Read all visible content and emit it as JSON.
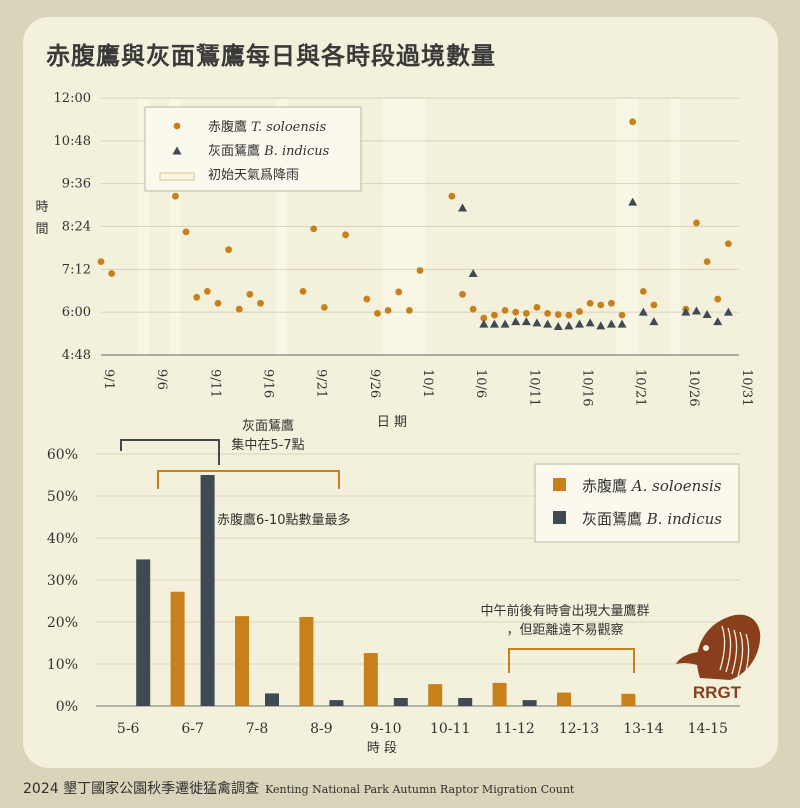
{
  "title": "赤腹鷹與灰面鵟鷹每日與各時段過境數量",
  "footer": {
    "zh": "2024 墾丁國家公園秋季遷徙猛禽調查",
    "en": "Kenting National Park Autumn Raptor Migration Count"
  },
  "logo": {
    "text": "RRGT",
    "icon": "eagle-head-icon",
    "color": "#8a3f1c"
  },
  "colors": {
    "chinese_sparrowhawk": "#c8811a",
    "grey_faced_buzzard": "#3f4a55",
    "rain_band": "#faf6e6",
    "annotation_grey": "#3f4a55",
    "annotation_orange": "#c8811a"
  },
  "chart_data": [
    {
      "type": "scatter",
      "xlabel": "日 期",
      "ylabel": "時間",
      "x_ticks": [
        "9/1",
        "9/6",
        "9/11",
        "9/16",
        "9/21",
        "9/26",
        "10/1",
        "10/6",
        "10/11",
        "10/16",
        "10/21",
        "10/26",
        "10/31"
      ],
      "y_ticks": [
        "4:48",
        "6:00",
        "7:12",
        "8:24",
        "9:36",
        "10:48",
        "12:00"
      ],
      "xlim": [
        "9/1",
        "10/31"
      ],
      "ylim": [
        "4:48",
        "12:00"
      ],
      "legend_position": "top-left",
      "legend": [
        {
          "symbol": "circle",
          "label_zh": "赤腹鷹",
          "label_sci": "T. soloensis"
        },
        {
          "symbol": "triangle",
          "label_zh": "灰面鵟鷹",
          "label_sci": "B. indicus"
        },
        {
          "symbol": "band",
          "label_zh": "初始天氣爲降雨",
          "label_sci": ""
        }
      ],
      "rain_days": [
        "9/5",
        "9/8",
        "9/18",
        "9/28",
        "9/29",
        "9/30",
        "9/31",
        "10/20",
        "10/21",
        "10/25"
      ],
      "series": [
        {
          "name": "赤腹鷹 T. soloensis",
          "marker": "circle",
          "points": [
            [
              "9/1",
              "7:25"
            ],
            [
              "9/2",
              "7:05"
            ],
            [
              "9/8",
              "9:15"
            ],
            [
              "9/9",
              "8:15"
            ],
            [
              "9/10",
              "6:25"
            ],
            [
              "9/11",
              "6:35"
            ],
            [
              "9/12",
              "6:15"
            ],
            [
              "9/13",
              "7:45"
            ],
            [
              "9/14",
              "6:05"
            ],
            [
              "9/15",
              "6:30"
            ],
            [
              "9/16",
              "6:15"
            ],
            [
              "9/20",
              "6:35"
            ],
            [
              "9/21",
              "8:20"
            ],
            [
              "9/22",
              "6:08"
            ],
            [
              "9/24",
              "8:10"
            ],
            [
              "9/26",
              "6:22"
            ],
            [
              "9/27",
              "5:58"
            ],
            [
              "9/28",
              "6:03"
            ],
            [
              "9/29",
              "6:34"
            ],
            [
              "9/30",
              "6:03"
            ],
            [
              "9/31",
              "7:10"
            ],
            [
              "10/4",
              "9:15"
            ],
            [
              "10/5",
              "6:30"
            ],
            [
              "10/6",
              "6:05"
            ],
            [
              "10/7",
              "5:50"
            ],
            [
              "10/8",
              "5:55"
            ],
            [
              "10/9",
              "6:03"
            ],
            [
              "10/10",
              "6:00"
            ],
            [
              "10/11",
              "5:58"
            ],
            [
              "10/12",
              "6:08"
            ],
            [
              "10/13",
              "5:58"
            ],
            [
              "10/14",
              "5:56"
            ],
            [
              "10/15",
              "5:55"
            ],
            [
              "10/16",
              "6:01"
            ],
            [
              "10/17",
              "6:15"
            ],
            [
              "10/18",
              "6:12"
            ],
            [
              "10/19",
              "6:15"
            ],
            [
              "10/20",
              "5:55"
            ],
            [
              "10/21",
              "11:20"
            ],
            [
              "10/22",
              "6:35"
            ],
            [
              "10/23",
              "6:12"
            ],
            [
              "10/26",
              "6:05"
            ],
            [
              "10/27",
              "8:30"
            ],
            [
              "10/28",
              "7:25"
            ],
            [
              "10/29",
              "6:22"
            ],
            [
              "10/30",
              "7:55"
            ]
          ]
        },
        {
          "name": "灰面鵟鷹 B. indicus",
          "marker": "triangle",
          "points": [
            [
              "10/5",
              "8:55"
            ],
            [
              "10/6",
              "7:05"
            ],
            [
              "10/7",
              "5:40"
            ],
            [
              "10/8",
              "5:40"
            ],
            [
              "10/9",
              "5:40"
            ],
            [
              "10/10",
              "5:44"
            ],
            [
              "10/11",
              "5:44"
            ],
            [
              "10/12",
              "5:42"
            ],
            [
              "10/13",
              "5:40"
            ],
            [
              "10/14",
              "5:36"
            ],
            [
              "10/15",
              "5:37"
            ],
            [
              "10/16",
              "5:40"
            ],
            [
              "10/17",
              "5:42"
            ],
            [
              "10/18",
              "5:37"
            ],
            [
              "10/19",
              "5:40"
            ],
            [
              "10/20",
              "5:40"
            ],
            [
              "10/21",
              "9:05"
            ],
            [
              "10/22",
              "6:00"
            ],
            [
              "10/23",
              "5:44"
            ],
            [
              "10/26",
              "6:00"
            ],
            [
              "10/27",
              "6:02"
            ],
            [
              "10/28",
              "5:56"
            ],
            [
              "10/29",
              "5:44"
            ],
            [
              "10/30",
              "6:00"
            ]
          ]
        }
      ]
    },
    {
      "type": "bar",
      "xlabel": "時 段",
      "y_ticks": [
        "0%",
        "10%",
        "20%",
        "30%",
        "40%",
        "50%",
        "60%"
      ],
      "ylim": [
        0,
        60
      ],
      "categories": [
        "5-6",
        "6-7",
        "7-8",
        "8-9",
        "9-10",
        "10-11",
        "11-12",
        "12-13",
        "13-14",
        "14-15"
      ],
      "legend_position": "top-right",
      "series": [
        {
          "name": "赤腹鷹 A. soloensis",
          "label_zh": "赤腹鷹",
          "label_sci": "A. soloensis",
          "values": [
            0,
            27.2,
            21.4,
            21.2,
            12.6,
            5.2,
            5.5,
            3.2,
            2.9,
            0
          ]
        },
        {
          "name": "灰面鵟鷹 B. indicus",
          "label_zh": "灰面鵟鷹",
          "label_sci": "B. indicus",
          "values": [
            34.9,
            55.0,
            3.0,
            1.4,
            1.9,
            1.9,
            1.4,
            0,
            0,
            0
          ]
        }
      ],
      "annotations": [
        {
          "text_lines": [
            "灰面鵟鷹",
            "集中在5-7點"
          ],
          "span": [
            "5-6",
            "6-7"
          ],
          "style": "grey"
        },
        {
          "text_lines": [
            "赤腹鷹6-10點數量最多"
          ],
          "span": [
            "6-7",
            "9-10"
          ],
          "style": "orange"
        },
        {
          "text_lines": [
            "中午前後有時會出現大量鷹群",
            "，但距離遠不易觀察"
          ],
          "span": [
            "11-12",
            "13-14"
          ],
          "style": "orange"
        }
      ]
    }
  ]
}
